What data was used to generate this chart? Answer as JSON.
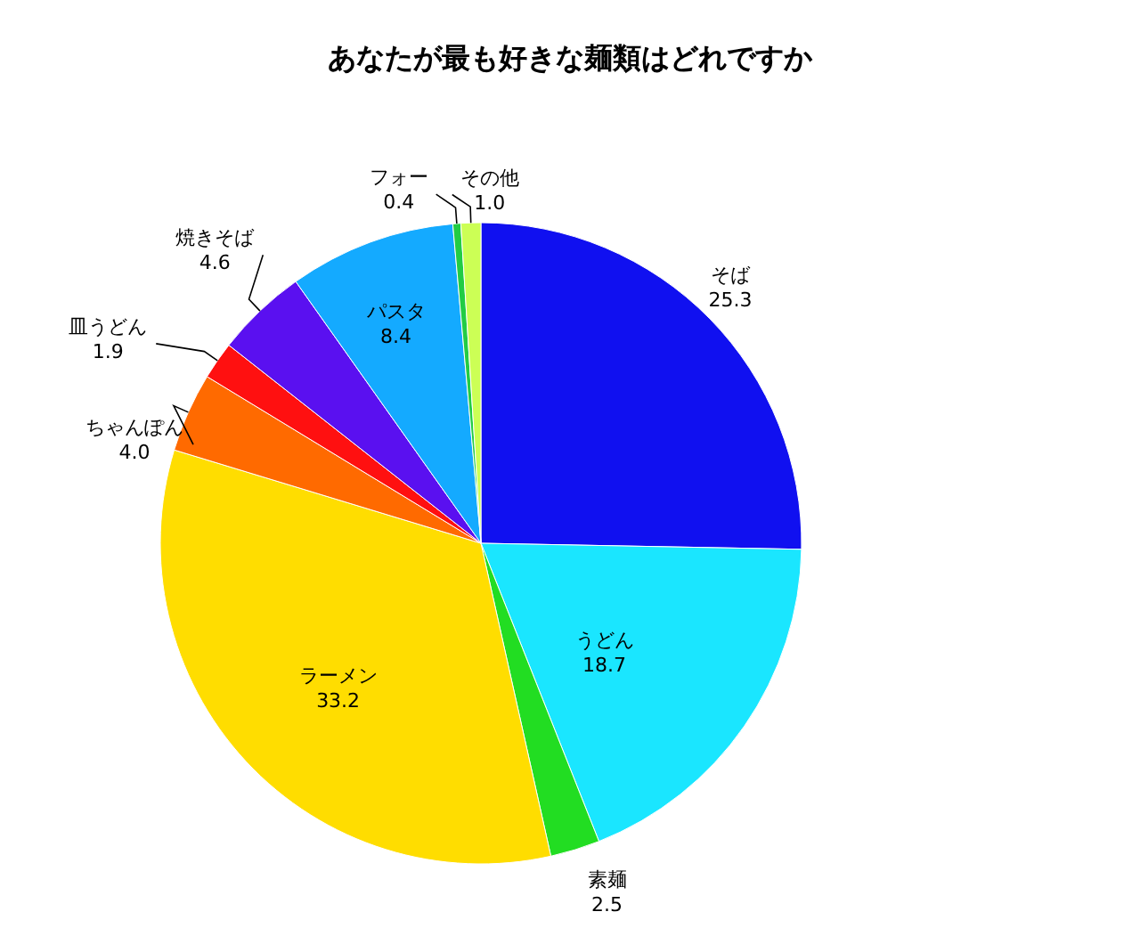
{
  "chart_data": {
    "type": "pie",
    "title": "あなたが最も好きな麺類はどれですか",
    "categories": [
      "そば",
      "うどん",
      "素麺",
      "ラーメン",
      "ちゃんぽん",
      "皿うどん",
      "焼きそば",
      "パスタ",
      "フォー",
      "その他"
    ],
    "values": [
      25.3,
      18.7,
      2.5,
      33.2,
      4.0,
      1.9,
      4.6,
      8.4,
      0.4,
      1.0
    ],
    "value_labels": [
      "25.3",
      "18.7",
      "2.5",
      "33.2",
      "4.0",
      "1.9",
      "4.6",
      "8.4",
      "0.4",
      "1.0"
    ],
    "colors": [
      "#1010f0",
      "#1ae6ff",
      "#22dd22",
      "#ffdd00",
      "#ff6a00",
      "#ff1010",
      "#5a10f0",
      "#14aaff",
      "#22cc44",
      "#ccff55"
    ]
  }
}
